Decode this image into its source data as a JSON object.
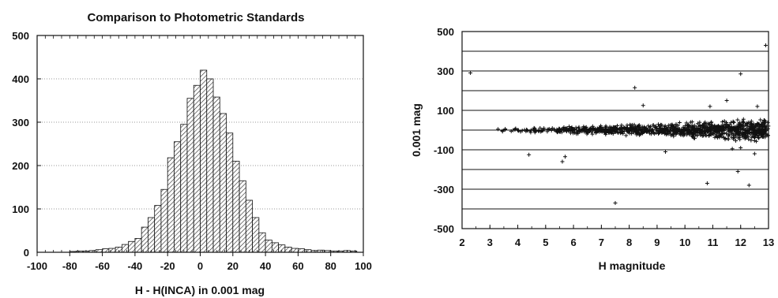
{
  "chart_data": [
    {
      "type": "bar",
      "title": "Comparison to Photometric Standards",
      "xlabel": "H - H(INCA) in 0.001 mag",
      "ylabel": "",
      "xlim": [
        -100,
        100
      ],
      "ylim": [
        0,
        500
      ],
      "bin_width": 4,
      "xticks": [
        -100,
        -80,
        -60,
        -40,
        -20,
        0,
        20,
        40,
        60,
        80,
        100
      ],
      "yticks": [
        0,
        100,
        200,
        300,
        400,
        500
      ],
      "gridlines_y": [
        100,
        200,
        300,
        400
      ],
      "hatch": true,
      "bins": [
        {
          "x": -78,
          "y": 2
        },
        {
          "x": -74,
          "y": 3
        },
        {
          "x": -70,
          "y": 3
        },
        {
          "x": -66,
          "y": 4
        },
        {
          "x": -62,
          "y": 6
        },
        {
          "x": -58,
          "y": 8
        },
        {
          "x": -54,
          "y": 9
        },
        {
          "x": -50,
          "y": 12
        },
        {
          "x": -46,
          "y": 18
        },
        {
          "x": -42,
          "y": 25
        },
        {
          "x": -38,
          "y": 32
        },
        {
          "x": -34,
          "y": 58
        },
        {
          "x": -30,
          "y": 80
        },
        {
          "x": -26,
          "y": 108
        },
        {
          "x": -22,
          "y": 145
        },
        {
          "x": -18,
          "y": 218
        },
        {
          "x": -14,
          "y": 255
        },
        {
          "x": -10,
          "y": 295
        },
        {
          "x": -6,
          "y": 355
        },
        {
          "x": -2,
          "y": 385
        },
        {
          "x": 2,
          "y": 420
        },
        {
          "x": 6,
          "y": 400
        },
        {
          "x": 10,
          "y": 358
        },
        {
          "x": 14,
          "y": 320
        },
        {
          "x": 18,
          "y": 275
        },
        {
          "x": 22,
          "y": 210
        },
        {
          "x": 26,
          "y": 165
        },
        {
          "x": 30,
          "y": 120
        },
        {
          "x": 34,
          "y": 80
        },
        {
          "x": 38,
          "y": 45
        },
        {
          "x": 42,
          "y": 28
        },
        {
          "x": 46,
          "y": 22
        },
        {
          "x": 50,
          "y": 17
        },
        {
          "x": 54,
          "y": 12
        },
        {
          "x": 58,
          "y": 9
        },
        {
          "x": 62,
          "y": 8
        },
        {
          "x": 66,
          "y": 6
        },
        {
          "x": 70,
          "y": 4
        },
        {
          "x": 74,
          "y": 5
        },
        {
          "x": 78,
          "y": 4
        },
        {
          "x": 82,
          "y": 3
        },
        {
          "x": 86,
          "y": 3
        },
        {
          "x": 90,
          "y": 4
        },
        {
          "x": 94,
          "y": 3
        }
      ]
    },
    {
      "type": "scatter",
      "title": "",
      "xlabel": "H magnitude",
      "ylabel": "0.001 mag",
      "xlim": [
        2,
        13
      ],
      "ylim": [
        -500,
        500
      ],
      "xticks": [
        2,
        3,
        4,
        5,
        6,
        7,
        8,
        9,
        10,
        11,
        12,
        13
      ],
      "yticks": [
        -500,
        -300,
        -100,
        100,
        300,
        500
      ],
      "gridlines_y": [
        -400,
        -300,
        -200,
        -100,
        0,
        100,
        200,
        300,
        400
      ],
      "marker": "+",
      "outliers": [
        {
          "x": 2.3,
          "y": 290
        },
        {
          "x": 12.0,
          "y": 285
        },
        {
          "x": 12.9,
          "y": 430
        },
        {
          "x": 8.2,
          "y": 215
        },
        {
          "x": 8.5,
          "y": 125
        },
        {
          "x": 11.5,
          "y": 150
        },
        {
          "x": 12.6,
          "y": 120
        },
        {
          "x": 10.9,
          "y": 120
        },
        {
          "x": 4.4,
          "y": -125
        },
        {
          "x": 5.6,
          "y": -160
        },
        {
          "x": 5.7,
          "y": -135
        },
        {
          "x": 7.5,
          "y": -370
        },
        {
          "x": 10.8,
          "y": -270
        },
        {
          "x": 11.9,
          "y": -210
        },
        {
          "x": 12.3,
          "y": -280
        },
        {
          "x": 9.3,
          "y": -110
        },
        {
          "x": 12.5,
          "y": -120
        },
        {
          "x": 12.0,
          "y": -90
        },
        {
          "x": 11.7,
          "y": -95
        }
      ],
      "core_band": [
        {
          "x": 3.0,
          "spread": 10
        },
        {
          "x": 4.0,
          "spread": 15
        },
        {
          "x": 5.0,
          "spread": 20
        },
        {
          "x": 6.0,
          "spread": 25
        },
        {
          "x": 7.0,
          "spread": 30
        },
        {
          "x": 8.0,
          "spread": 35
        },
        {
          "x": 9.0,
          "spread": 40
        },
        {
          "x": 10.0,
          "spread": 45
        },
        {
          "x": 11.0,
          "spread": 55
        },
        {
          "x": 12.0,
          "spread": 70
        },
        {
          "x": 13.0,
          "spread": 80
        }
      ],
      "core_points": 1100
    }
  ]
}
